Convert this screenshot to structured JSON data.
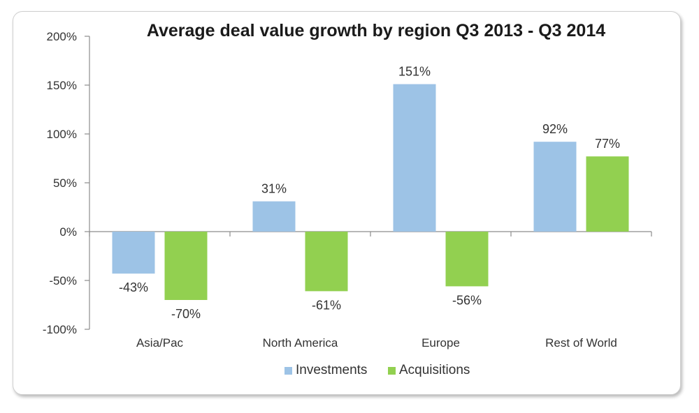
{
  "chart_data": {
    "type": "bar",
    "title": "Average deal value growth by region Q3 2013 - Q3 2014",
    "xlabel": "",
    "ylabel": "",
    "categories": [
      "Asia/Pac",
      "North America",
      "Europe",
      "Rest of World"
    ],
    "series": [
      {
        "name": "Investments",
        "values": [
          -43,
          31,
          151,
          92
        ],
        "labels": [
          "-43%",
          "31%",
          "151%",
          "92%"
        ],
        "color": "#9dc3e6"
      },
      {
        "name": "Acquisitions",
        "values": [
          -70,
          -61,
          -56,
          77
        ],
        "labels": [
          "-70%",
          "-61%",
          "-56%",
          "77%"
        ],
        "color": "#92d050"
      }
    ],
    "ylim": [
      -100,
      200
    ],
    "yticks": [
      200,
      150,
      100,
      50,
      0,
      -50,
      -100
    ],
    "ytick_labels": [
      "200%",
      "150%",
      "100%",
      "50%",
      "0%",
      "-50%",
      "-100%"
    ],
    "grid": false,
    "legend_position": "bottom"
  }
}
